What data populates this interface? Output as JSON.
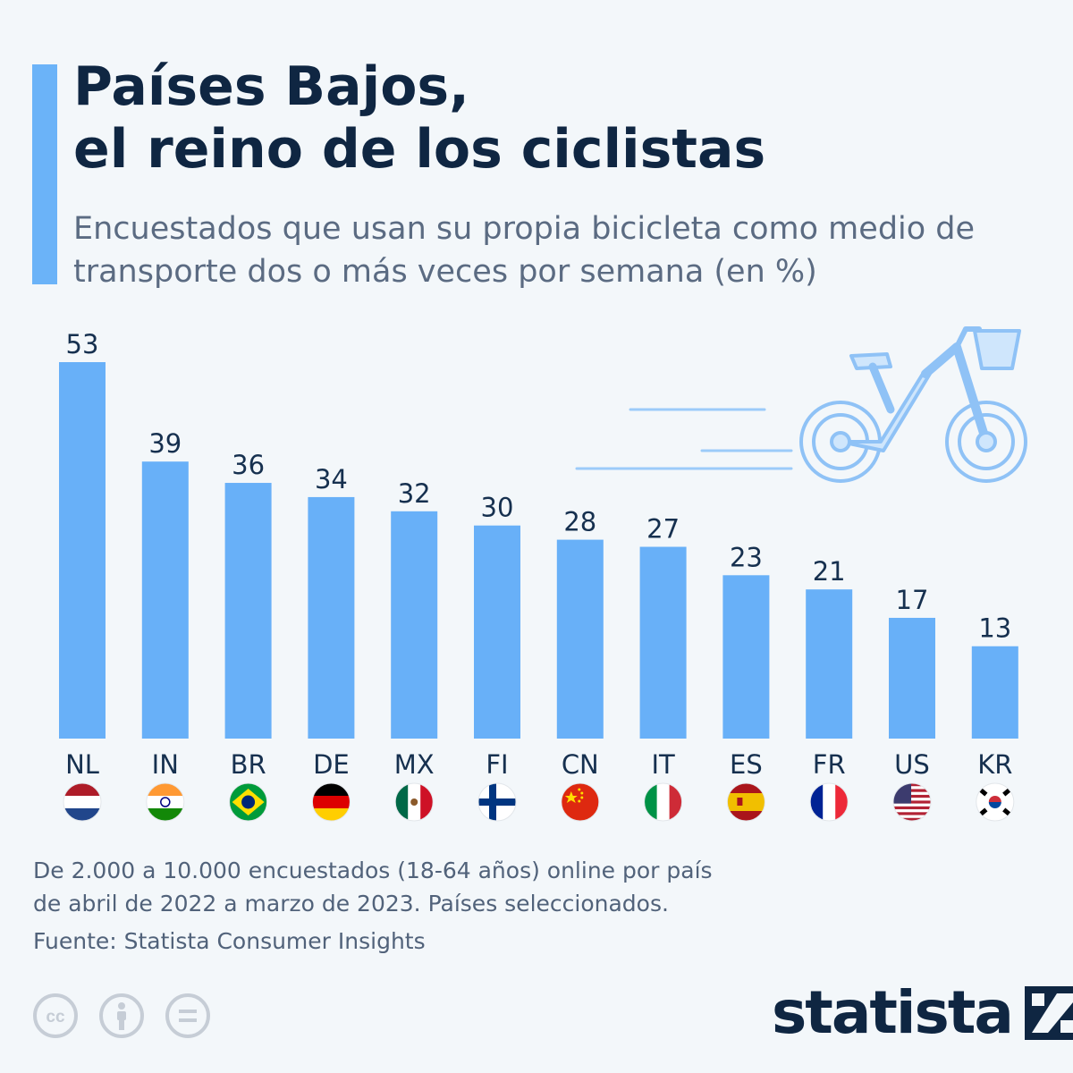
{
  "title": {
    "line1": "Países Bajos,",
    "line2": "el reino de los ciclistas"
  },
  "subtitle": {
    "line1": "Encuestados que usan su propia bicicleta como medio de",
    "line2": "transporte dos o más veces por semana (en %)"
  },
  "chart_data": {
    "type": "bar",
    "categories": [
      "NL",
      "IN",
      "BR",
      "DE",
      "MX",
      "FI",
      "CN",
      "IT",
      "ES",
      "FR",
      "US",
      "KR"
    ],
    "values": [
      53,
      39,
      36,
      34,
      32,
      30,
      28,
      27,
      23,
      21,
      17,
      13
    ],
    "title": "Países Bajos, el reino de los ciclistas",
    "ylim": [
      0,
      53
    ],
    "grid": false,
    "legend": "none",
    "bar_color": "#68b0f8",
    "label_color": "#16304f"
  },
  "footnote": {
    "line1": "De 2.000 a 10.000 encuestados (18-64 años) online por país",
    "line2": "de abril de 2022 a marzo de 2023. Países seleccionados."
  },
  "source": "Fuente: Statista Consumer Insights",
  "license_icons": [
    "creative-commons-icon",
    "attribution-icon",
    "no-derivatives-icon"
  ],
  "brand": {
    "name": "statista",
    "color": "#0f2642"
  },
  "colors": {
    "accent": "#6bb3f8",
    "background": "#f3f7fa",
    "bike": "#9ccbf9"
  }
}
